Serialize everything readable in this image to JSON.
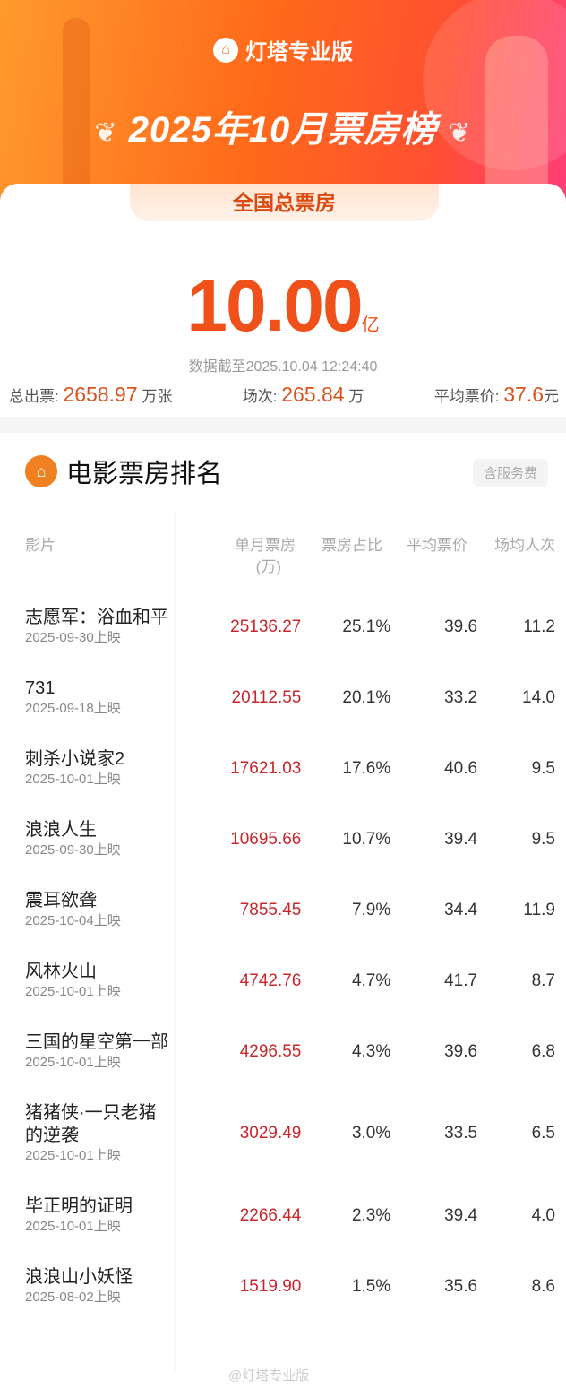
{
  "header": {
    "brand": "灯塔专业版",
    "title": "2025年10月票房榜",
    "tab": "全国总票房",
    "brand_color": "#ff6a1a"
  },
  "summary": {
    "total": "10.00",
    "total_unit": "亿",
    "as_of": "数据截至2025.10.04 12:24:40",
    "tickets_label": "总出票:",
    "tickets": "2658.97",
    "tickets_unit": "万张",
    "shows_label": "场次:",
    "shows": "265.84",
    "shows_unit": "万",
    "avg_price_label": "平均票价:",
    "avg_price": "37.6",
    "avg_price_unit": "元"
  },
  "ranking": {
    "title": "电影票房排名",
    "fee_badge": "含服务费",
    "columns": [
      "影片",
      "单月票房",
      "(万)",
      "票房占比",
      "平均票价",
      "场均人次"
    ],
    "rows": [
      {
        "title": "志愿军：浴血和平",
        "date": "2025-09-30上映",
        "box": "25136.27",
        "share": "25.1%",
        "price": "39.6",
        "att": "11.2"
      },
      {
        "title": "731",
        "date": "2025-09-18上映",
        "box": "20112.55",
        "share": "20.1%",
        "price": "33.2",
        "att": "14.0"
      },
      {
        "title": "刺杀小说家2",
        "date": "2025-10-01上映",
        "box": "17621.03",
        "share": "17.6%",
        "price": "40.6",
        "att": "9.5"
      },
      {
        "title": "浪浪人生",
        "date": "2025-09-30上映",
        "box": "10695.66",
        "share": "10.7%",
        "price": "39.4",
        "att": "9.5"
      },
      {
        "title": "震耳欲聋",
        "date": "2025-10-04上映",
        "box": "7855.45",
        "share": "7.9%",
        "price": "34.4",
        "att": "11.9"
      },
      {
        "title": "风林火山",
        "date": "2025-10-01上映",
        "box": "4742.76",
        "share": "4.7%",
        "price": "41.7",
        "att": "8.7"
      },
      {
        "title": "三国的星空第一部",
        "date": "2025-10-01上映",
        "box": "4296.55",
        "share": "4.3%",
        "price": "39.6",
        "att": "6.8"
      },
      {
        "title": "猪猪侠·一只老猪的逆袭",
        "date": "2025-10-01上映",
        "box": "3029.49",
        "share": "3.0%",
        "price": "33.5",
        "att": "6.5"
      },
      {
        "title": "毕正明的证明",
        "date": "2025-10-01上映",
        "box": "2266.44",
        "share": "2.3%",
        "price": "39.4",
        "att": "4.0"
      },
      {
        "title": "浪浪山小妖怪",
        "date": "2025-08-02上映",
        "box": "1519.90",
        "share": "1.5%",
        "price": "35.6",
        "att": "8.6"
      }
    ]
  },
  "watermark": "@灯塔专业版"
}
